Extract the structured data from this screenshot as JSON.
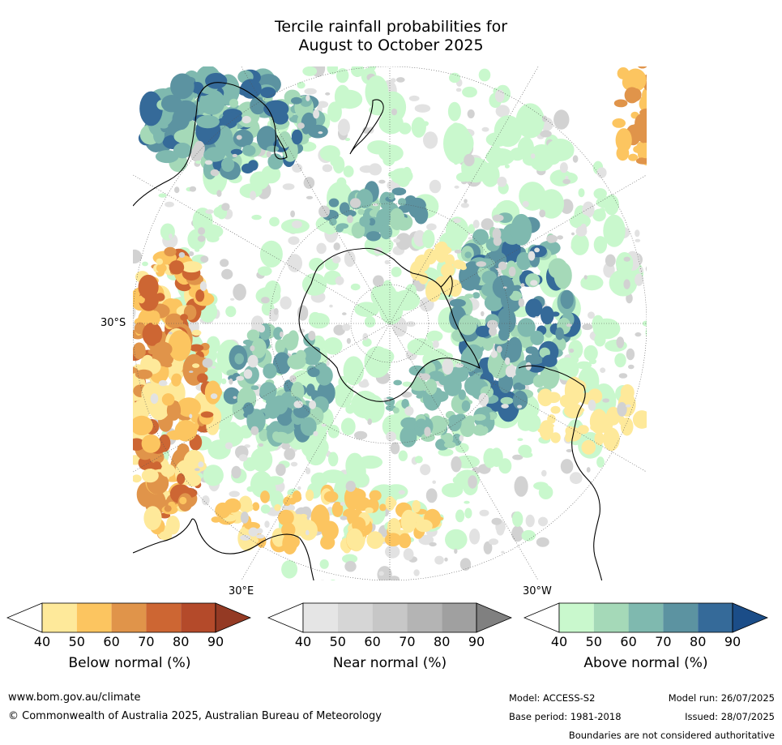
{
  "title_line1": "Tercile rainfall probabilities for",
  "title_line2": "August to October 2025",
  "map": {
    "lat_label": "30°S",
    "lon_label_east": "30°E",
    "lon_label_west": "30°W"
  },
  "colorbars": [
    {
      "title": "Below normal (%)",
      "ticks": [
        "40",
        "50",
        "60",
        "70",
        "80",
        "90"
      ],
      "colors": [
        "#ffffff",
        "#fee99a",
        "#fcc560",
        "#e0944a",
        "#cd6633",
        "#b44a2a",
        "#943a24"
      ]
    },
    {
      "title": "Near normal (%)",
      "ticks": [
        "40",
        "50",
        "60",
        "70",
        "80",
        "90"
      ],
      "colors": [
        "#ffffff",
        "#e5e5e5",
        "#d6d6d6",
        "#c7c7c7",
        "#b4b4b4",
        "#a0a0a0",
        "#808080"
      ]
    },
    {
      "title": "Above normal (%)",
      "ticks": [
        "40",
        "50",
        "60",
        "70",
        "80",
        "90"
      ],
      "colors": [
        "#ffffff",
        "#c9f8cd",
        "#a5d9b8",
        "#7fb9af",
        "#5c93a1",
        "#356a99",
        "#1b4d88"
      ]
    }
  ],
  "footer": {
    "website": "www.bom.gov.au/climate",
    "copyright": "© Commonwealth of Australia 2025, Australian Bureau of Meteorology",
    "model": "Model: ACCESS-S2",
    "model_run": "Model run: 26/07/2025",
    "base_period": "Base period: 1981-2018",
    "issued": "Issued: 28/07/2025",
    "disclaimer": "Boundaries are not considered authoritative"
  },
  "palette": {
    "below": [
      "#fee99a",
      "#fcc560",
      "#e0944a",
      "#cd6633"
    ],
    "near": [
      "#e2e2e2",
      "#d2d2d2"
    ],
    "above": [
      "#c9f8cd",
      "#a5d9b8",
      "#7fb9af",
      "#5c93a1",
      "#356a99"
    ]
  }
}
